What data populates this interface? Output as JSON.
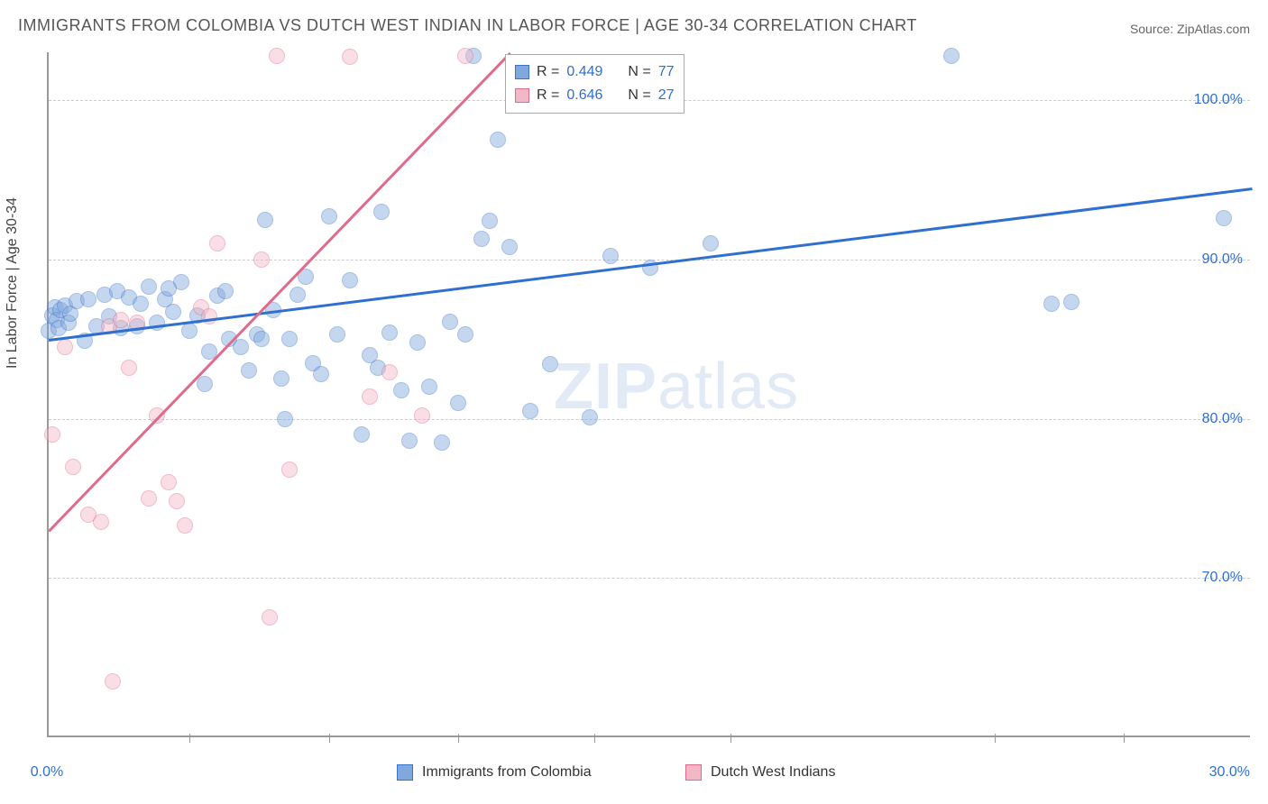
{
  "title": "IMMIGRANTS FROM COLOMBIA VS DUTCH WEST INDIAN IN LABOR FORCE | AGE 30-34 CORRELATION CHART",
  "source": "Source: ZipAtlas.com",
  "ylabel": "In Labor Force | Age 30-34",
  "watermark_bold": "ZIP",
  "watermark_rest": "atlas",
  "chart": {
    "type": "scatter",
    "background_color": "#ffffff",
    "grid_color": "#cccccc",
    "axis_color": "#999999",
    "tick_font_color": "#2f6fd0",
    "tick_fontsize": 16,
    "title_fontsize": 18,
    "title_color": "#555555",
    "label_fontsize": 16,
    "xlim": [
      0,
      30
    ],
    "ylim": [
      60,
      103
    ],
    "x_ticks_major": [
      0,
      30
    ],
    "x_ticks_minor": [
      3.5,
      7,
      10.2,
      13.6,
      17,
      23.6,
      26.8
    ],
    "y_ticks": [
      70,
      80,
      90,
      100
    ],
    "x_tick_labels": {
      "0": "0.0%",
      "30": "30.0%"
    },
    "y_tick_labels": {
      "70": "70.0%",
      "80": "80.0%",
      "90": "90.0%",
      "100": "100.0%"
    },
    "point_radius": 9,
    "point_fill_opacity": 0.45,
    "series": [
      {
        "name": "Immigrants from Colombia",
        "color_fill": "#7fa8dd",
        "color_stroke": "#3a72c8",
        "R_label": "R = ",
        "R_value": "0.449",
        "N_label": "N = ",
        "N_value": "77",
        "regression": {
          "x1": 0,
          "y1": 85.0,
          "x2": 30,
          "y2": 94.5,
          "color": "#2f6fd0"
        },
        "points": [
          [
            0.0,
            85.5
          ],
          [
            0.1,
            86.5
          ],
          [
            0.15,
            87.0
          ],
          [
            0.2,
            86.2
          ],
          [
            0.25,
            85.7
          ],
          [
            0.3,
            86.8
          ],
          [
            0.4,
            87.1
          ],
          [
            0.5,
            86.0
          ],
          [
            0.55,
            86.6
          ],
          [
            0.7,
            87.4
          ],
          [
            0.9,
            84.9
          ],
          [
            1.0,
            87.5
          ],
          [
            1.2,
            85.8
          ],
          [
            1.4,
            87.8
          ],
          [
            1.5,
            86.4
          ],
          [
            1.7,
            88.0
          ],
          [
            1.8,
            85.7
          ],
          [
            2.0,
            87.6
          ],
          [
            2.2,
            85.8
          ],
          [
            2.3,
            87.2
          ],
          [
            2.5,
            88.3
          ],
          [
            2.7,
            86.0
          ],
          [
            2.9,
            87.5
          ],
          [
            3.1,
            86.7
          ],
          [
            3.3,
            88.6
          ],
          [
            3.5,
            85.5
          ],
          [
            3.7,
            86.5
          ],
          [
            3.9,
            82.2
          ],
          [
            4.2,
            87.7
          ],
          [
            4.4,
            88.0
          ],
          [
            4.5,
            85.0
          ],
          [
            4.8,
            84.5
          ],
          [
            5.0,
            83.0
          ],
          [
            5.2,
            85.3
          ],
          [
            5.4,
            92.5
          ],
          [
            5.6,
            86.8
          ],
          [
            5.8,
            82.5
          ],
          [
            5.9,
            80.0
          ],
          [
            6.0,
            85.0
          ],
          [
            6.2,
            87.8
          ],
          [
            6.4,
            88.9
          ],
          [
            6.6,
            83.5
          ],
          [
            6.8,
            82.8
          ],
          [
            7.0,
            92.7
          ],
          [
            7.2,
            85.3
          ],
          [
            7.5,
            88.7
          ],
          [
            7.8,
            79.0
          ],
          [
            8.0,
            84.0
          ],
          [
            8.2,
            83.2
          ],
          [
            8.3,
            93.0
          ],
          [
            8.5,
            85.4
          ],
          [
            8.8,
            81.8
          ],
          [
            9.0,
            78.6
          ],
          [
            9.2,
            84.8
          ],
          [
            9.5,
            82.0
          ],
          [
            9.8,
            78.5
          ],
          [
            10.0,
            86.1
          ],
          [
            10.2,
            81.0
          ],
          [
            10.4,
            85.3
          ],
          [
            10.6,
            102.8
          ],
          [
            10.8,
            91.3
          ],
          [
            11.0,
            92.4
          ],
          [
            11.2,
            97.5
          ],
          [
            11.5,
            90.8
          ],
          [
            12.0,
            80.5
          ],
          [
            12.5,
            83.4
          ],
          [
            13.5,
            80.1
          ],
          [
            14.0,
            90.2
          ],
          [
            15.0,
            89.5
          ],
          [
            16.5,
            91.0
          ],
          [
            22.5,
            102.8
          ],
          [
            25.0,
            87.2
          ],
          [
            25.5,
            87.3
          ],
          [
            29.3,
            92.6
          ],
          [
            3.0,
            88.2
          ],
          [
            4.0,
            84.2
          ],
          [
            5.3,
            85.0
          ]
        ]
      },
      {
        "name": "Dutch West Indians",
        "color_fill": "#f2b8c6",
        "color_stroke": "#e06a8a",
        "R_label": "R = ",
        "R_value": "0.646",
        "N_label": "N = ",
        "N_value": "27",
        "regression": {
          "x1": 0,
          "y1": 73.0,
          "x2": 11.5,
          "y2": 103.0,
          "color": "#e06a8a"
        },
        "points": [
          [
            0.1,
            79.0
          ],
          [
            0.4,
            84.5
          ],
          [
            0.6,
            77.0
          ],
          [
            1.0,
            74.0
          ],
          [
            1.3,
            73.5
          ],
          [
            1.5,
            85.8
          ],
          [
            1.6,
            63.5
          ],
          [
            1.8,
            86.2
          ],
          [
            2.0,
            83.2
          ],
          [
            2.2,
            86.0
          ],
          [
            2.5,
            75.0
          ],
          [
            2.7,
            80.2
          ],
          [
            3.0,
            76.0
          ],
          [
            3.2,
            74.8
          ],
          [
            3.4,
            73.3
          ],
          [
            3.8,
            87.0
          ],
          [
            4.0,
            86.4
          ],
          [
            4.2,
            91.0
          ],
          [
            5.3,
            90.0
          ],
          [
            5.5,
            67.5
          ],
          [
            5.7,
            102.8
          ],
          [
            6.0,
            76.8
          ],
          [
            7.5,
            102.7
          ],
          [
            8.0,
            81.4
          ],
          [
            8.5,
            82.9
          ],
          [
            9.3,
            80.2
          ],
          [
            10.4,
            102.8
          ]
        ]
      }
    ],
    "legend_bottom": [
      {
        "label": "Immigrants from Colombia",
        "fill": "#7fa8dd",
        "stroke": "#3a72c8"
      },
      {
        "label": "Dutch West Indians",
        "fill": "#f2b8c6",
        "stroke": "#e06a8a"
      }
    ]
  }
}
